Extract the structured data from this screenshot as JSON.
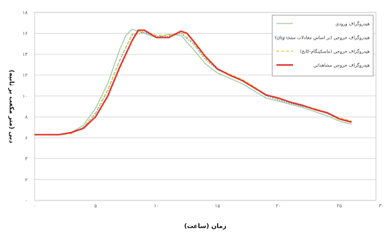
{
  "chart_data": {
    "type": "line",
    "xlabel": "زمان (ساعت)",
    "ylabel": "دبی (متر مکعب بر ثانیه)",
    "xlim": [
      0,
      28
    ],
    "ylim": [
      0,
      18
    ],
    "x_ticks": [
      "۰",
      "۵",
      "۱۰",
      "۱۵",
      "۲۰",
      "۲۵",
      "۳۰"
    ],
    "x_tick_values": [
      0,
      5,
      10,
      15,
      20,
      25,
      30
    ],
    "y_ticks": [
      "۰",
      "۲",
      "۴",
      "۶",
      "۸",
      "۱۰",
      "۱۲",
      "۱۴",
      "۱۶",
      "۱۸"
    ],
    "y_tick_values": [
      0,
      2,
      4,
      6,
      8,
      10,
      12,
      14,
      16,
      18
    ],
    "grid": "horizontal",
    "legend_position": "top-right",
    "series": [
      {
        "name": "هیدروگراف ورودی",
        "color": "#9cc6a0",
        "dash": "solid",
        "x": [
          0,
          2,
          3,
          4,
          5,
          6,
          7,
          7.5,
          8,
          9,
          10,
          11,
          12,
          13,
          14,
          15,
          16,
          17,
          18,
          19,
          20,
          21,
          22,
          23,
          24,
          25,
          26
        ],
        "y": [
          6.3,
          6.3,
          6.5,
          7.2,
          8.8,
          11.2,
          14.5,
          15.8,
          16.4,
          16.0,
          15.6,
          15.9,
          15.8,
          14.5,
          13.1,
          12.2,
          11.7,
          11.2,
          10.5,
          9.8,
          9.5,
          9.2,
          8.9,
          8.5,
          8.1,
          7.6,
          7.3
        ]
      },
      {
        "name": "هیدروگراف خروجی (بر اساس معادلات سنت ونان)",
        "color": "#4a7fc0",
        "dash": "dot",
        "x": [
          0,
          2,
          3,
          4,
          5,
          6,
          7,
          8,
          9,
          10,
          11,
          12,
          13,
          14,
          15,
          16,
          17,
          18,
          19,
          20,
          21,
          22,
          23,
          24,
          25,
          26
        ],
        "y": [
          6.3,
          6.3,
          6.4,
          7.0,
          8.3,
          10.5,
          13.4,
          15.8,
          16.1,
          15.7,
          15.7,
          16.0,
          15.0,
          13.5,
          12.5,
          12.0,
          11.5,
          10.8,
          10.0,
          9.6,
          9.3,
          9.0,
          8.7,
          8.3,
          7.8,
          7.5
        ]
      },
      {
        "name": "هیدروگراف خروجی (ماسکینگام-کانج)",
        "color": "#e0c020",
        "dash": "dash",
        "x": [
          0,
          2,
          3,
          4,
          5,
          6,
          7,
          8,
          9,
          10,
          11,
          12,
          13,
          14,
          15,
          16,
          17,
          18,
          19,
          20,
          21,
          22,
          23,
          24,
          25,
          26
        ],
        "y": [
          6.3,
          6.3,
          6.4,
          7.0,
          8.4,
          10.6,
          13.5,
          15.9,
          16.2,
          15.8,
          15.8,
          16.1,
          15.1,
          13.6,
          12.6,
          12.1,
          11.6,
          10.9,
          10.1,
          9.7,
          9.4,
          9.1,
          8.8,
          8.4,
          7.9,
          7.6
        ]
      },
      {
        "name": "هیدروگراف خروجی مشاهداتی",
        "color": "#e0332a",
        "dash": "solid",
        "x": [
          0,
          2,
          3,
          4,
          5,
          6,
          7,
          8,
          8.5,
          9,
          10,
          11,
          12,
          12.5,
          13,
          14,
          15,
          16,
          17,
          18,
          19,
          20,
          21,
          22,
          23,
          24,
          25,
          26
        ],
        "y": [
          6.3,
          6.3,
          6.5,
          6.9,
          8.0,
          10.0,
          12.8,
          15.3,
          16.3,
          16.3,
          15.6,
          15.6,
          16.2,
          16.0,
          15.3,
          13.8,
          12.6,
          12.0,
          11.5,
          10.8,
          10.1,
          9.8,
          9.4,
          9.1,
          8.7,
          8.4,
          7.8,
          7.5
        ]
      }
    ]
  }
}
